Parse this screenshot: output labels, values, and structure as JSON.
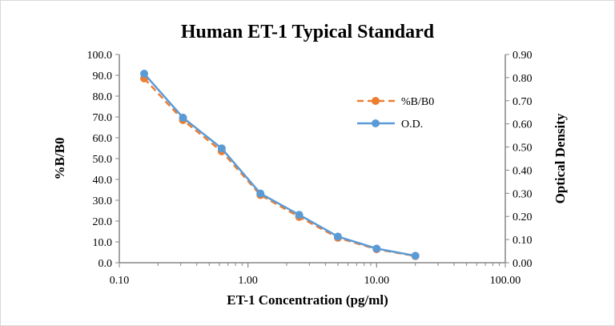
{
  "chart_data": {
    "type": "line",
    "title": "Human ET-1 Typical Standard",
    "xlabel": "ET-1 Concentration (pg/ml)",
    "ylabel": "%B/B0",
    "y2label": "Optical Density",
    "xscale": "log",
    "xlim": [
      0.1,
      100
    ],
    "ylim": [
      0,
      100
    ],
    "y2lim": [
      0,
      0.9
    ],
    "xticks": [
      "0.10",
      "1.00",
      "10.00",
      "100.00"
    ],
    "yticks": [
      "0.0",
      "10.0",
      "20.0",
      "30.0",
      "40.0",
      "50.0",
      "60.0",
      "70.0",
      "80.0",
      "90.0",
      "100.0"
    ],
    "y2ticks": [
      "0.00",
      "0.10",
      "0.20",
      "0.30",
      "0.40",
      "0.50",
      "0.60",
      "0.70",
      "0.80",
      "0.90"
    ],
    "legend": "right-inside",
    "grid": false,
    "x": [
      0.156,
      0.3125,
      0.625,
      1.25,
      2.5,
      5,
      10,
      20
    ],
    "series": [
      {
        "name": "%B/B0",
        "axis": "left",
        "color": "#ED7D31",
        "dashed": true,
        "values": [
          88.5,
          68.5,
          53.5,
          32.5,
          22.0,
          12.0,
          6.5,
          3.2
        ]
      },
      {
        "name": "O.D.",
        "axis": "right",
        "color": "#5B9BD5",
        "dashed": false,
        "values": [
          0.817,
          0.627,
          0.494,
          0.299,
          0.207,
          0.113,
          0.061,
          0.03
        ]
      }
    ]
  }
}
